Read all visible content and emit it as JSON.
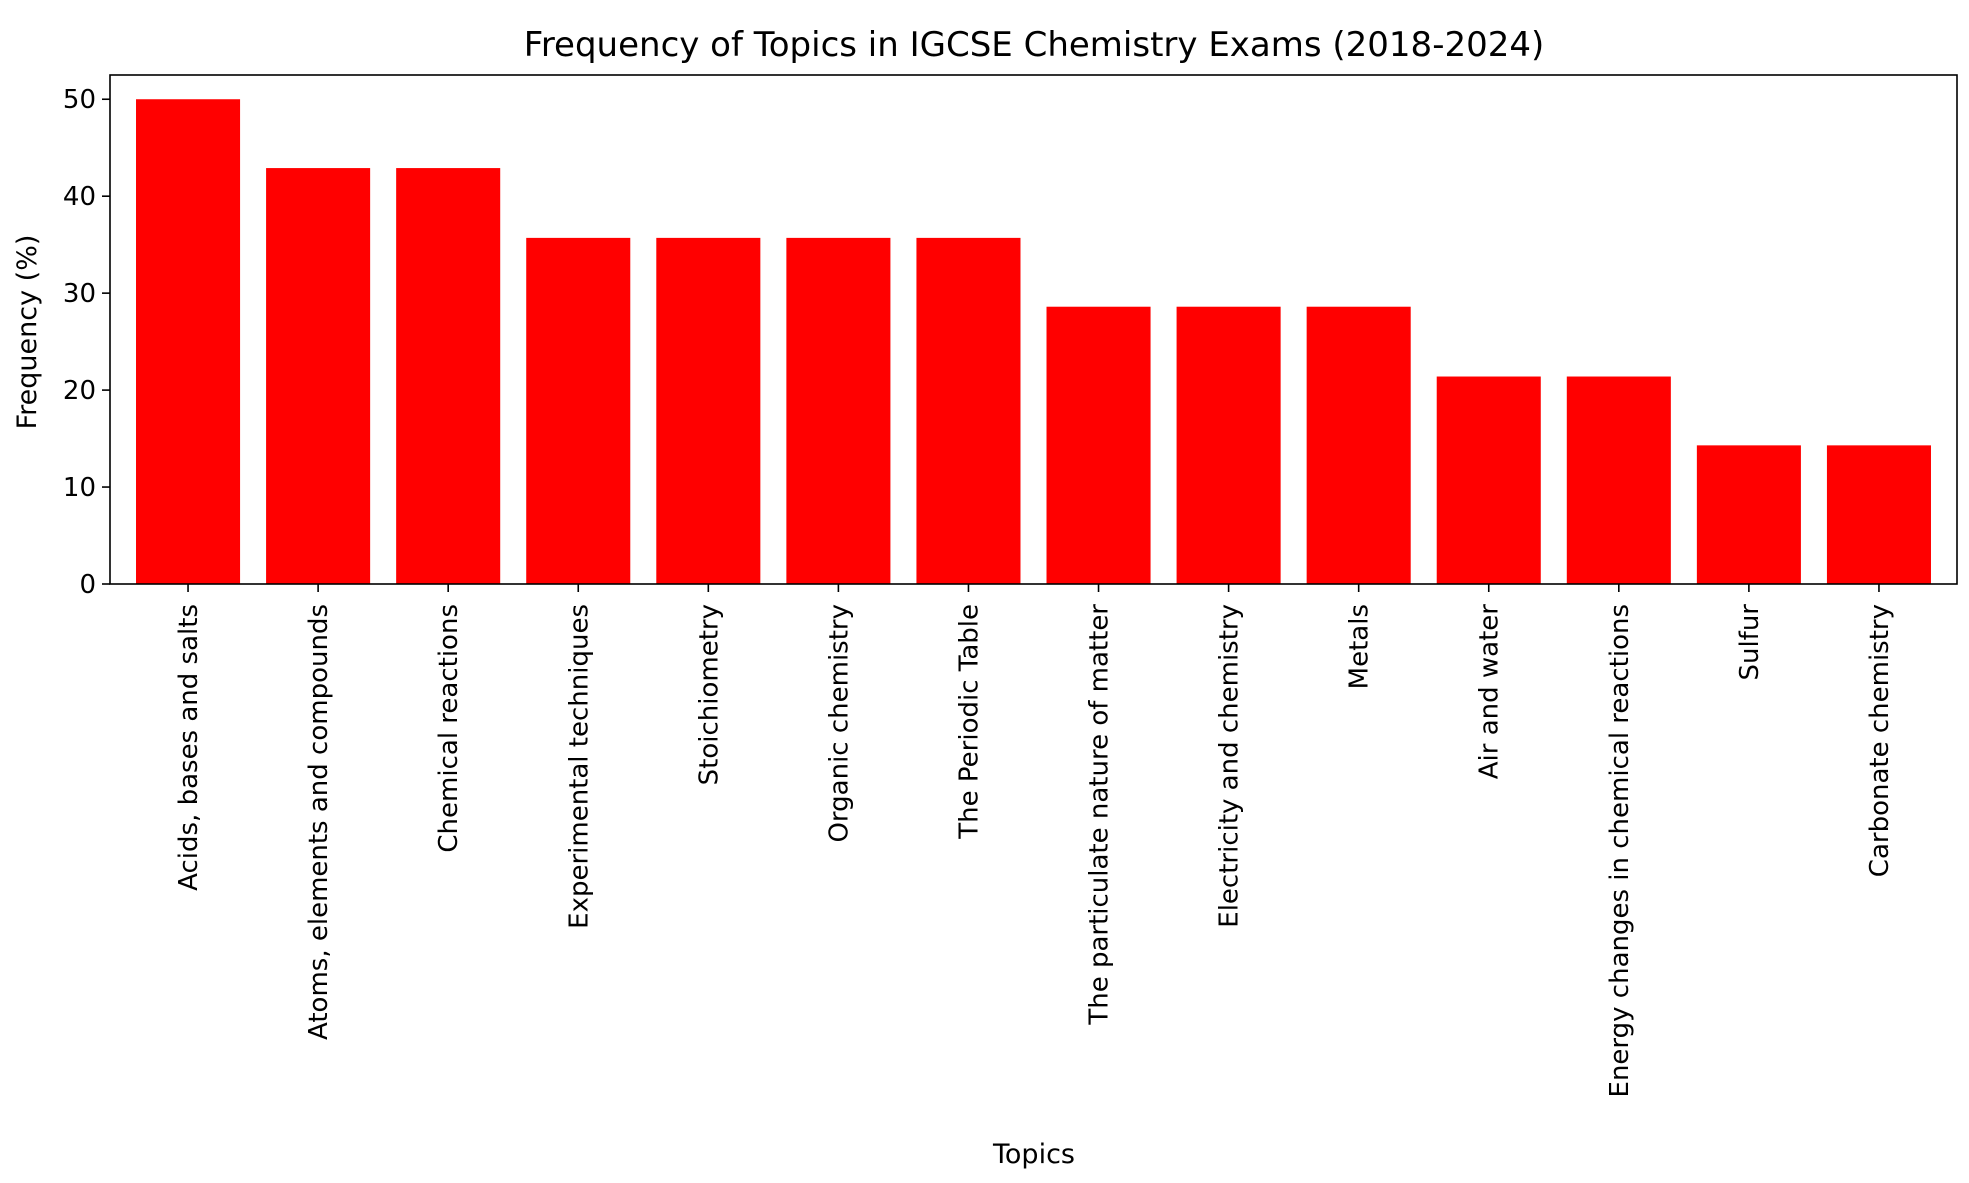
{
  "chart_data": {
    "type": "bar",
    "title": "Frequency of Topics in IGCSE Chemistry Exams (2018-2024)",
    "xlabel": "Topics",
    "ylabel": "Frequency (%)",
    "ylim": [
      0,
      52.5
    ],
    "yticks": [
      0,
      10,
      20,
      30,
      40,
      50
    ],
    "grid": false,
    "bar_color": "#ff0000",
    "categories": [
      "Acids, bases and salts",
      "Atoms, elements and compounds",
      "Chemical reactions",
      "Experimental techniques",
      "Stoichiometry",
      "Organic chemistry",
      "The Periodic Table",
      "The particulate nature of matter",
      "Electricity and chemistry",
      "Metals",
      "Air and water",
      "Energy changes in chemical reactions",
      "Sulfur",
      "Carbonate chemistry"
    ],
    "values": [
      50.0,
      42.9,
      42.9,
      35.7,
      35.7,
      35.7,
      35.7,
      28.6,
      28.6,
      28.6,
      21.4,
      21.4,
      14.3,
      14.3
    ]
  }
}
